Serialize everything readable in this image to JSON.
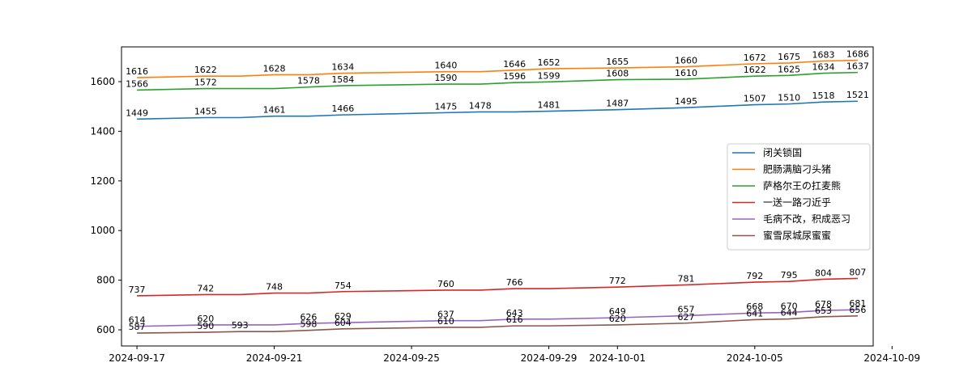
{
  "chart_data": {
    "type": "line",
    "title": "",
    "xlabel": "",
    "ylabel": "",
    "grid": false,
    "legend_position": "center-right",
    "x_dates": [
      "2024-09-17",
      "2024-09-19",
      "2024-09-20",
      "2024-09-21",
      "2024-09-22",
      "2024-09-23",
      "2024-09-26",
      "2024-09-27",
      "2024-09-28",
      "2024-09-29",
      "2024-10-01",
      "2024-10-03",
      "2024-10-05",
      "2024-10-06",
      "2024-10-07",
      "2024-10-08"
    ],
    "x_tick_labels": [
      "2024-09-17",
      "2024-09-21",
      "2024-09-25",
      "2024-09-29",
      "2024-10-01",
      "2024-10-05",
      "2024-10-09"
    ],
    "x_tick_dates": [
      "2024-09-17",
      "2024-09-21",
      "2024-09-25",
      "2024-09-29",
      "2024-10-01",
      "2024-10-05",
      "2024-10-09"
    ],
    "xlim": [
      "2024-09-16.55",
      "2024-10-08.45"
    ],
    "y_ticks": [
      600,
      800,
      1000,
      1200,
      1400,
      1600
    ],
    "ylim": [
      535,
      1740
    ],
    "series": [
      {
        "name": "闭关锁国",
        "color": "#1f77b4",
        "values": [
          1449,
          1455,
          1455,
          1461,
          1461,
          1466,
          1475,
          1478,
          1478,
          1481,
          1487,
          1495,
          1507,
          1510,
          1518,
          1521
        ],
        "labels": [
          "1449",
          "1455",
          "",
          "1461",
          "",
          "1466",
          "1475",
          "1478",
          "",
          "1481",
          "1487",
          "1495",
          "1507",
          "1510",
          "1518",
          "1521"
        ]
      },
      {
        "name": "肥肠满脑刁头猪",
        "color": "#ff7f0e",
        "values": [
          1616,
          1622,
          1622,
          1628,
          1628,
          1634,
          1640,
          1640,
          1646,
          1652,
          1655,
          1660,
          1672,
          1675,
          1683,
          1686
        ],
        "labels": [
          "1616",
          "1622",
          "",
          "1628",
          "",
          "1634",
          "1640",
          "",
          "1646",
          "1652",
          "1655",
          "1660",
          "1672",
          "1675",
          "1683",
          "1686"
        ]
      },
      {
        "name": "萨格尔王の扛麦熊",
        "color": "#2ca02c",
        "values": [
          1566,
          1572,
          1572,
          1572,
          1578,
          1584,
          1590,
          1590,
          1596,
          1599,
          1608,
          1610,
          1622,
          1625,
          1634,
          1637
        ],
        "labels": [
          "1566",
          "1572",
          "",
          "",
          "1578",
          "1584",
          "1590",
          "",
          "1596",
          "1599",
          "1608",
          "1610",
          "1622",
          "1625",
          "1634",
          "1637"
        ]
      },
      {
        "name": "一送一路刁近乎",
        "color": "#d62728",
        "values": [
          737,
          742,
          742,
          748,
          748,
          754,
          760,
          760,
          766,
          766,
          772,
          781,
          792,
          795,
          804,
          807
        ],
        "labels": [
          "737",
          "742",
          "",
          "748",
          "",
          "754",
          "760",
          "",
          "766",
          "",
          "772",
          "781",
          "792",
          "795",
          "804",
          "807"
        ]
      },
      {
        "name": "毛病不改，积成恶习",
        "color": "#9467bd",
        "values": [
          614,
          620,
          620,
          620,
          626,
          629,
          637,
          637,
          643,
          643,
          649,
          657,
          668,
          670,
          678,
          681
        ],
        "labels": [
          "614",
          "620",
          "",
          "",
          "626",
          "629",
          "637",
          "",
          "643",
          "",
          "649",
          "657",
          "668",
          "670",
          "678",
          "681"
        ]
      },
      {
        "name": "蜜雪尿城尿蜜蜜",
        "color": "#8c564b",
        "values": [
          587,
          590,
          593,
          593,
          598,
          604,
          610,
          610,
          616,
          616,
          620,
          627,
          641,
          644,
          653,
          656
        ],
        "labels": [
          "587",
          "590",
          "593",
          "",
          "598",
          "604",
          "610",
          "",
          "616",
          "",
          "620",
          "627",
          "641",
          "644",
          "653",
          "656"
        ]
      }
    ]
  }
}
